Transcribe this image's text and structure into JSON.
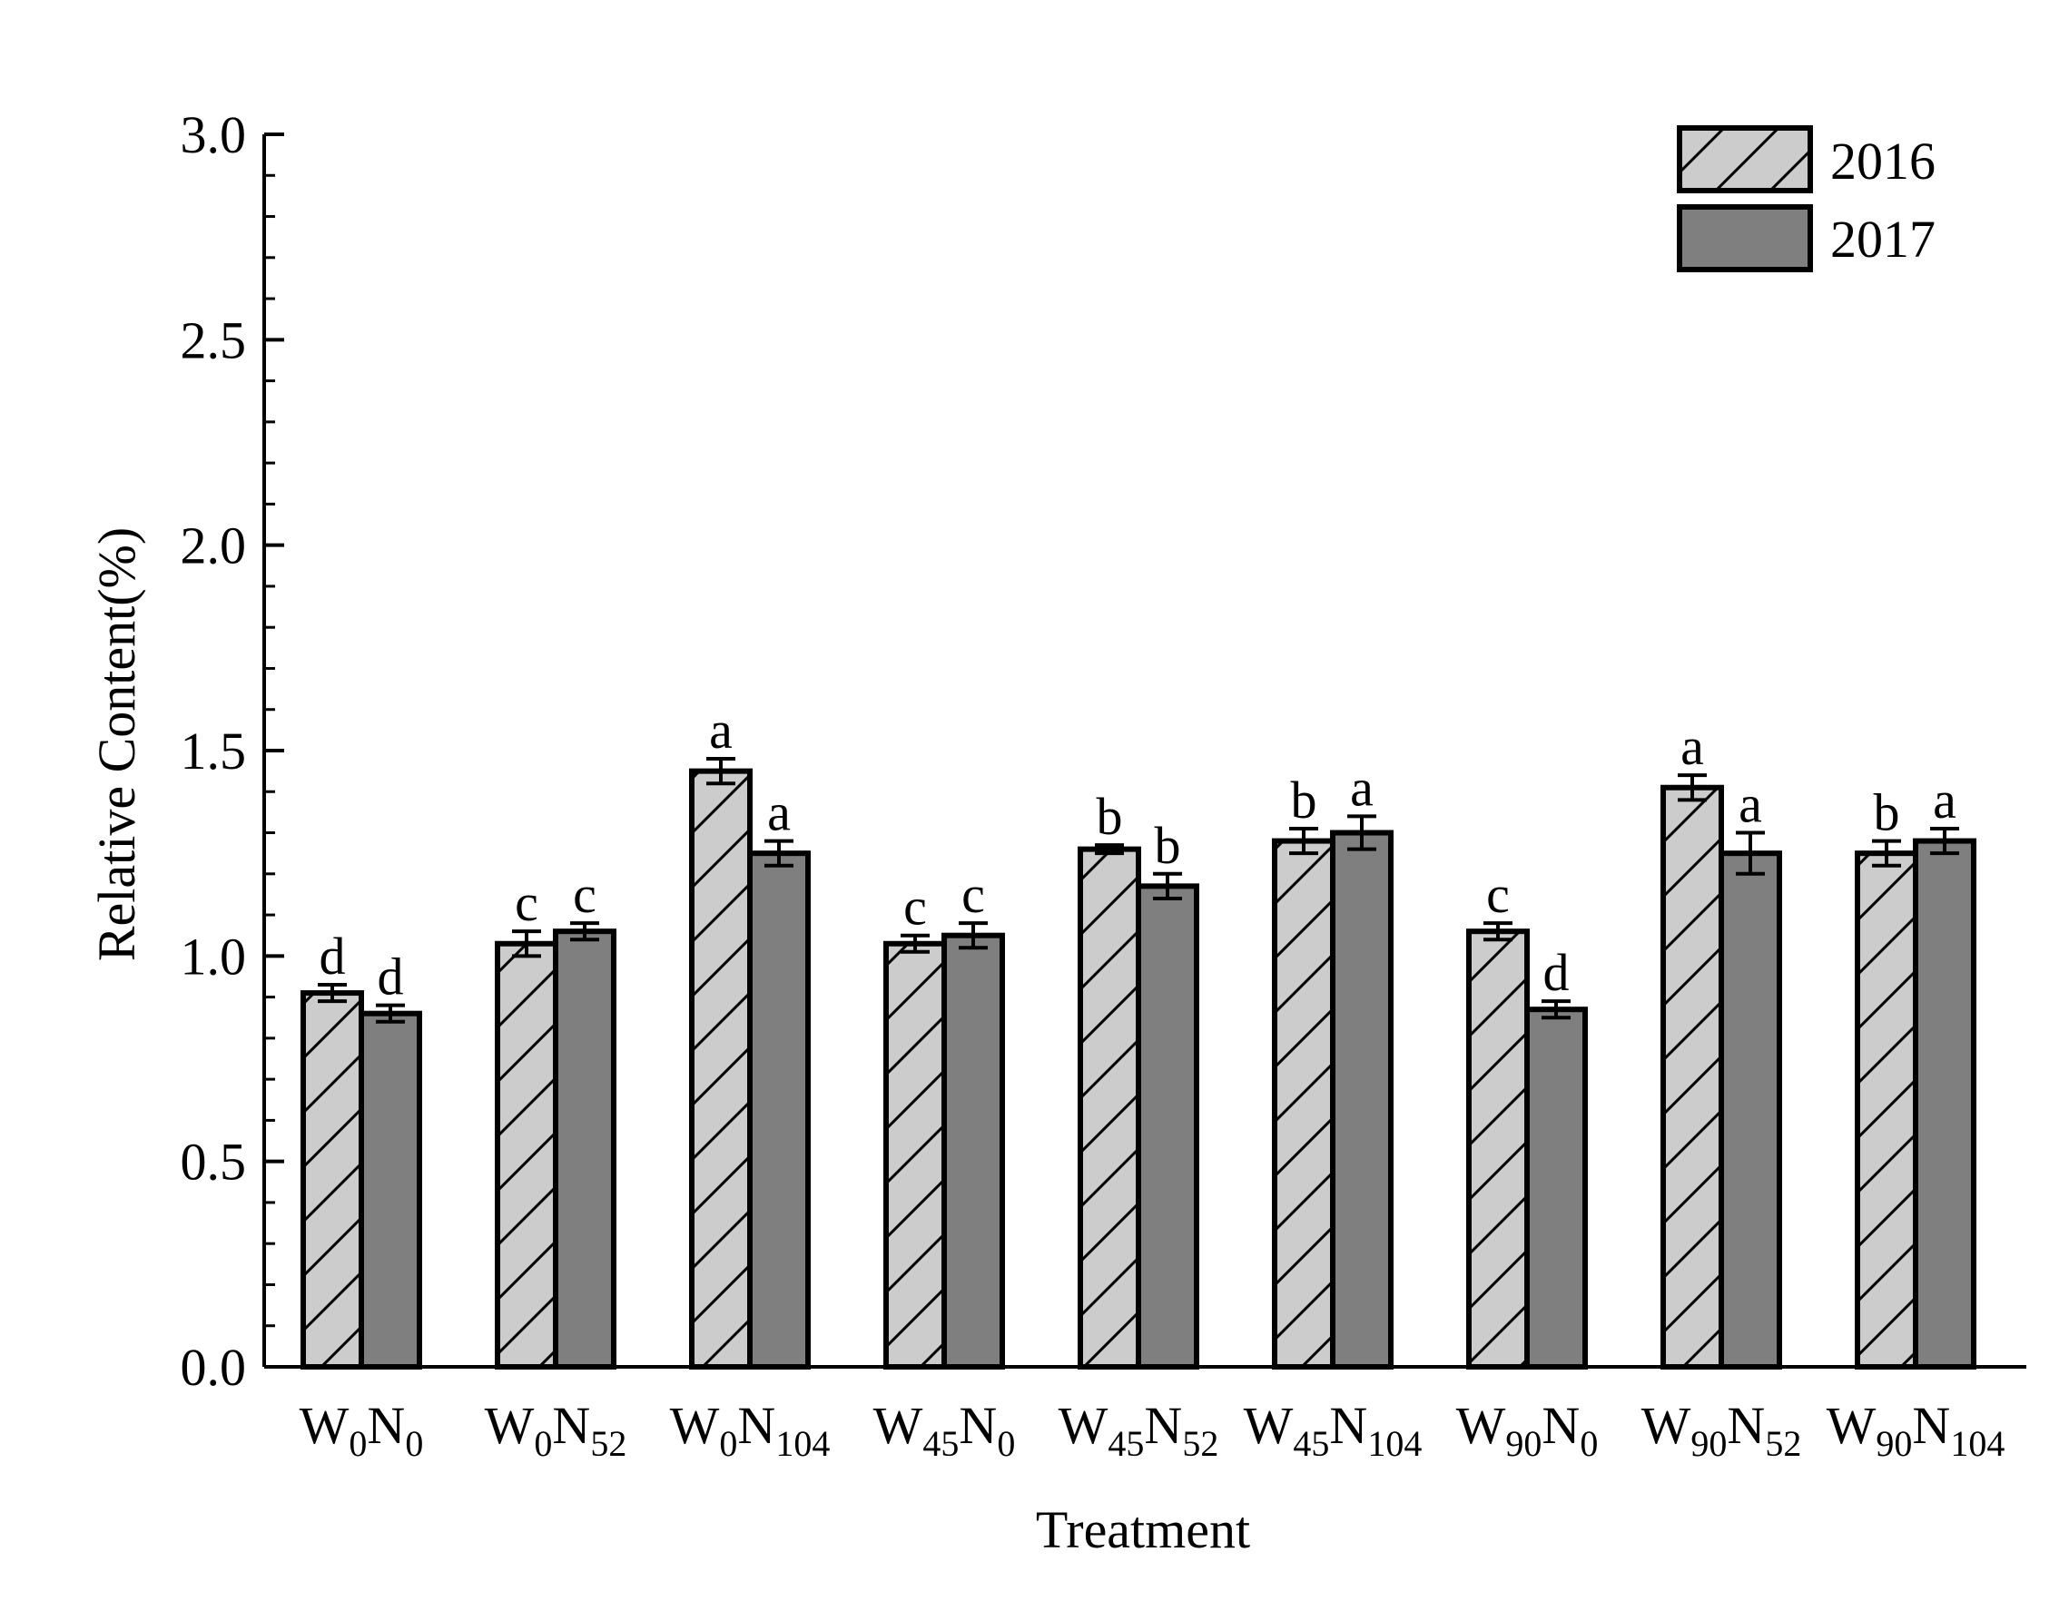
{
  "chart_data": {
    "type": "bar",
    "title": "",
    "xlabel": "Treatment",
    "ylabel": "Relative Content(%)",
    "ylim": [
      0,
      3.0
    ],
    "yticks": [
      "0.0",
      "0.5",
      "1.0",
      "1.5",
      "2.0",
      "2.5",
      "3.0"
    ],
    "ytick_values": [
      0,
      0.5,
      1.0,
      1.5,
      2.0,
      2.5,
      3.0
    ],
    "categories": [
      {
        "base1": "W",
        "sub1": "0",
        "base2": "N",
        "sub2": "0"
      },
      {
        "base1": "W",
        "sub1": "0",
        "base2": "N",
        "sub2": "52"
      },
      {
        "base1": "W",
        "sub1": "0",
        "base2": "N",
        "sub2": "104"
      },
      {
        "base1": "W",
        "sub1": "45",
        "base2": "N",
        "sub2": "0"
      },
      {
        "base1": "W",
        "sub1": "45",
        "base2": "N",
        "sub2": "52"
      },
      {
        "base1": "W",
        "sub1": "45",
        "base2": "N",
        "sub2": "104"
      },
      {
        "base1": "W",
        "sub1": "90",
        "base2": "N",
        "sub2": "0"
      },
      {
        "base1": "W",
        "sub1": "90",
        "base2": "N",
        "sub2": "52"
      },
      {
        "base1": "W",
        "sub1": "90",
        "base2": "N",
        "sub2": "104"
      }
    ],
    "series": [
      {
        "name": "2016",
        "style": "hatched",
        "color": "#cccccc",
        "values": [
          0.91,
          1.03,
          1.45,
          1.03,
          1.26,
          1.28,
          1.06,
          1.41,
          1.25
        ],
        "errors": [
          0.02,
          0.03,
          0.03,
          0.02,
          0.01,
          0.03,
          0.02,
          0.03,
          0.03
        ],
        "letters": [
          "d",
          "c",
          "a",
          "c",
          "b",
          "b",
          "c",
          "a",
          "b"
        ]
      },
      {
        "name": "2017",
        "style": "solid",
        "color": "#7f7f7f",
        "values": [
          0.86,
          1.06,
          1.25,
          1.05,
          1.17,
          1.3,
          0.87,
          1.25,
          1.28
        ],
        "errors": [
          0.02,
          0.02,
          0.03,
          0.03,
          0.03,
          0.04,
          0.02,
          0.05,
          0.03
        ],
        "letters": [
          "d",
          "c",
          "a",
          "c",
          "b",
          "a",
          "d",
          "a",
          "a"
        ]
      }
    ],
    "legend": {
      "position": "top-right"
    }
  }
}
